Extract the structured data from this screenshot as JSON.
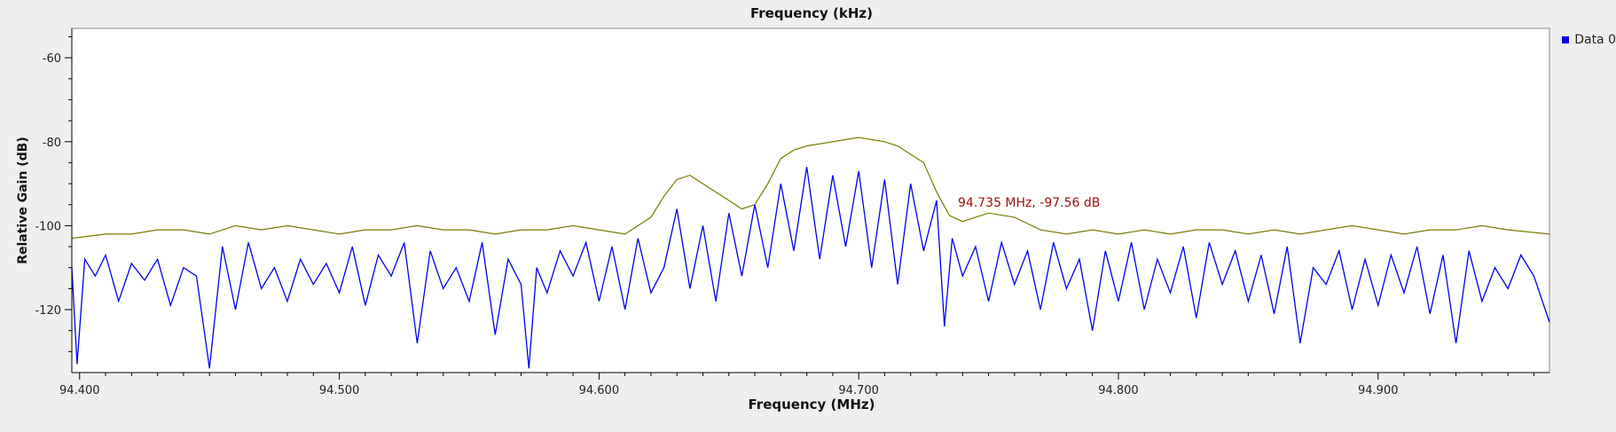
{
  "colors": {
    "background": "#efefef",
    "plot_background": "#ffffff",
    "series_min_hold": "#0000ee",
    "series_max_hold": "#7b7b00",
    "marker_text": "#a01010",
    "axis": "#000000"
  },
  "legend": {
    "label": "Data 0",
    "placement": "top-right",
    "swatch_color": "#0000ee"
  },
  "top_axis": {
    "label": "Frequency (kHz)"
  },
  "marker": {
    "label": "94.735 MHz, -97.56 dB",
    "x": 94.735,
    "y": -97.56
  },
  "chart_data": {
    "type": "line",
    "xlabel": "Frequency (MHz)",
    "ylabel": "Relative Gain (dB)",
    "xlim": [
      94.397,
      94.966
    ],
    "ylim": [
      -135,
      -53
    ],
    "x_ticks": [
      94.4,
      94.5,
      94.6,
      94.7,
      94.8,
      94.9
    ],
    "x_tick_labels": [
      "94.400",
      "94.500",
      "94.600",
      "94.700",
      "94.800",
      "94.900"
    ],
    "y_ticks": [
      -60,
      -80,
      -100,
      -120
    ],
    "y_tick_labels": [
      "-60",
      "-80",
      "-100",
      "-120"
    ],
    "grid": false,
    "series": [
      {
        "name": "Data 0",
        "color": "#7b7b00",
        "x": [
          94.397,
          94.41,
          94.42,
          94.43,
          94.44,
          94.45,
          94.46,
          94.47,
          94.48,
          94.49,
          94.5,
          94.51,
          94.52,
          94.53,
          94.54,
          94.55,
          94.56,
          94.57,
          94.58,
          94.59,
          94.6,
          94.61,
          94.62,
          94.625,
          94.63,
          94.635,
          94.64,
          94.645,
          94.65,
          94.655,
          94.66,
          94.665,
          94.67,
          94.675,
          94.68,
          94.685,
          94.69,
          94.695,
          94.7,
          94.705,
          94.71,
          94.715,
          94.72,
          94.725,
          94.73,
          94.735,
          94.74,
          94.745,
          94.75,
          94.76,
          94.77,
          94.78,
          94.79,
          94.8,
          94.81,
          94.82,
          94.83,
          94.84,
          94.85,
          94.86,
          94.87,
          94.88,
          94.89,
          94.9,
          94.91,
          94.92,
          94.93,
          94.94,
          94.95,
          94.966
        ],
        "values": [
          -103,
          -102,
          -102,
          -101,
          -101,
          -102,
          -100,
          -101,
          -100,
          -101,
          -102,
          -101,
          -101,
          -100,
          -101,
          -101,
          -102,
          -101,
          -101,
          -100,
          -101,
          -102,
          -98,
          -93,
          -89,
          -88,
          -90,
          -92,
          -94,
          -96,
          -95,
          -90,
          -84,
          -82,
          -81,
          -80.5,
          -80,
          -79.5,
          -79,
          -79.5,
          -80,
          -81,
          -83,
          -85,
          -92,
          -97.6,
          -99,
          -98,
          -97,
          -98,
          -101,
          -102,
          -101,
          -102,
          -101,
          -102,
          -101,
          -101,
          -102,
          -101,
          -102,
          -101,
          -100,
          -101,
          -102,
          -101,
          -101,
          -100,
          -101,
          -102
        ]
      },
      {
        "name": "",
        "color": "#0000ee",
        "x": [
          94.397,
          94.399,
          94.402,
          94.406,
          94.41,
          94.415,
          94.42,
          94.425,
          94.43,
          94.435,
          94.44,
          94.445,
          94.45,
          94.455,
          94.46,
          94.465,
          94.47,
          94.475,
          94.48,
          94.485,
          94.49,
          94.495,
          94.5,
          94.505,
          94.51,
          94.515,
          94.52,
          94.525,
          94.53,
          94.535,
          94.54,
          94.545,
          94.55,
          94.555,
          94.56,
          94.565,
          94.57,
          94.573,
          94.576,
          94.58,
          94.585,
          94.59,
          94.595,
          94.6,
          94.605,
          94.61,
          94.615,
          94.62,
          94.625,
          94.63,
          94.635,
          94.64,
          94.645,
          94.65,
          94.655,
          94.66,
          94.665,
          94.67,
          94.675,
          94.68,
          94.685,
          94.69,
          94.695,
          94.7,
          94.705,
          94.71,
          94.715,
          94.72,
          94.725,
          94.73,
          94.733,
          94.736,
          94.74,
          94.745,
          94.75,
          94.755,
          94.76,
          94.765,
          94.77,
          94.775,
          94.78,
          94.785,
          94.79,
          94.795,
          94.8,
          94.805,
          94.81,
          94.815,
          94.82,
          94.825,
          94.83,
          94.835,
          94.84,
          94.845,
          94.85,
          94.855,
          94.86,
          94.865,
          94.87,
          94.875,
          94.88,
          94.885,
          94.89,
          94.895,
          94.9,
          94.905,
          94.91,
          94.915,
          94.92,
          94.925,
          94.93,
          94.935,
          94.94,
          94.945,
          94.95,
          94.955,
          94.96,
          94.966
        ],
        "values": [
          -110,
          -133,
          -108,
          -112,
          -107,
          -118,
          -109,
          -113,
          -108,
          -119,
          -110,
          -112,
          -134,
          -105,
          -120,
          -104,
          -115,
          -110,
          -118,
          -108,
          -114,
          -109,
          -116,
          -105,
          -119,
          -107,
          -112,
          -104,
          -128,
          -106,
          -115,
          -110,
          -118,
          -104,
          -126,
          -108,
          -114,
          -134,
          -110,
          -116,
          -106,
          -112,
          -104,
          -118,
          -105,
          -120,
          -103,
          -116,
          -110,
          -96,
          -115,
          -100,
          -118,
          -97,
          -112,
          -95,
          -110,
          -90,
          -106,
          -86,
          -108,
          -88,
          -105,
          -87,
          -110,
          -89,
          -114,
          -90,
          -106,
          -94,
          -124,
          -103,
          -112,
          -105,
          -118,
          -104,
          -114,
          -106,
          -120,
          -104,
          -115,
          -108,
          -125,
          -106,
          -118,
          -104,
          -120,
          -108,
          -116,
          -105,
          -122,
          -104,
          -114,
          -106,
          -118,
          -107,
          -121,
          -105,
          -128,
          -110,
          -114,
          -106,
          -120,
          -108,
          -119,
          -107,
          -116,
          -105,
          -121,
          -107,
          -128,
          -106,
          -118,
          -110,
          -115,
          -107,
          -112,
          -123
        ]
      }
    ]
  }
}
